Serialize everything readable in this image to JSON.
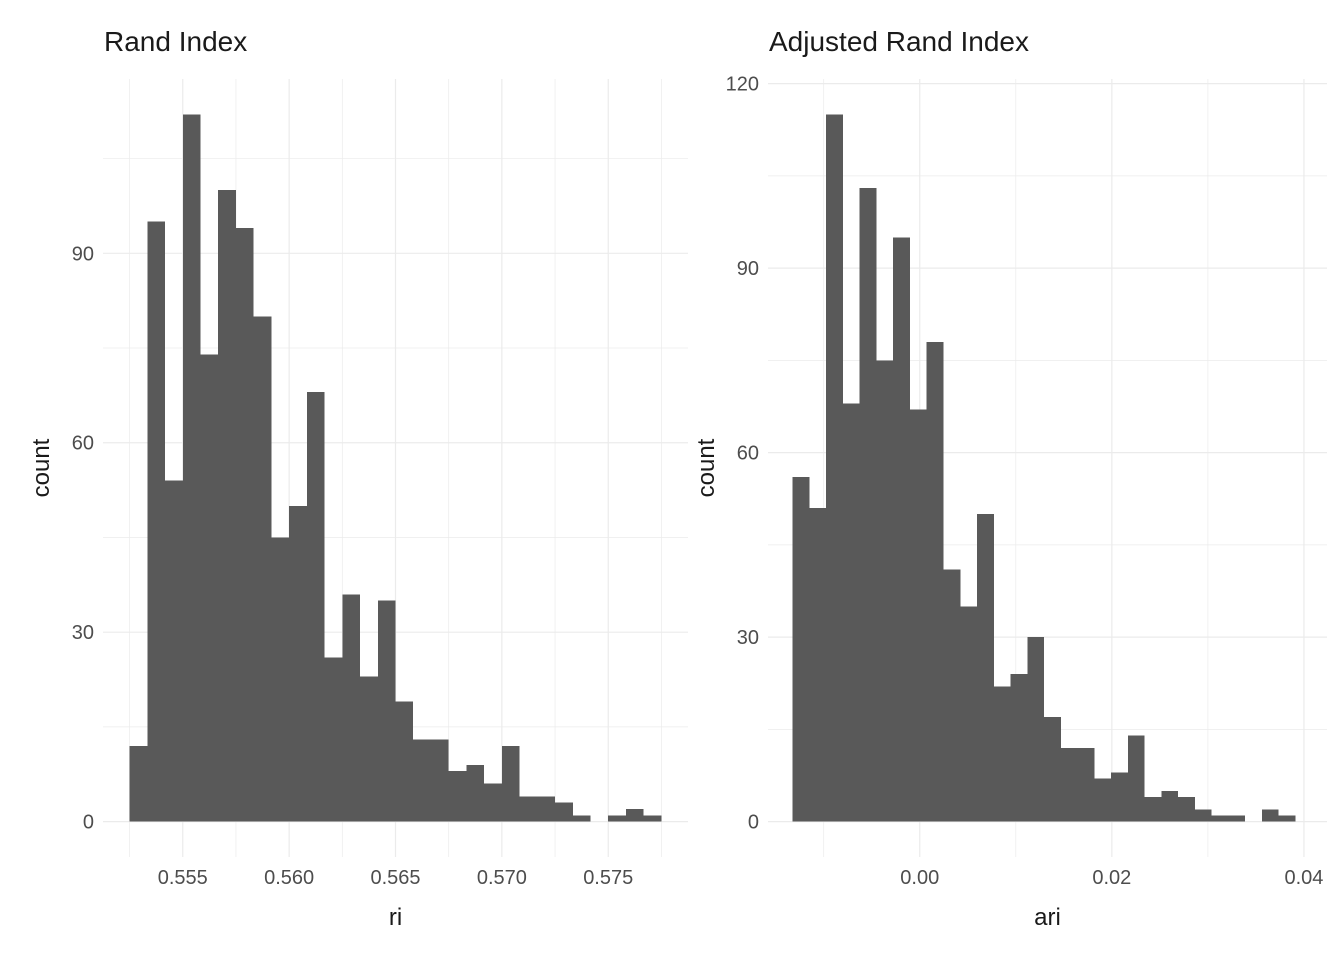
{
  "figure": {
    "background": "#ffffff",
    "bar_fill": "#595959",
    "grid_color": "#ebebeb",
    "tick_label_color": "#4d4d4d",
    "text_color": "#1a1a1a"
  },
  "chart_data": [
    {
      "type": "bar",
      "subtype": "histogram",
      "title": "Rand Index",
      "xlabel": "ri",
      "ylabel": "count",
      "bin_start": 0.5525,
      "bin_width": 0.0008333,
      "counts": [
        12,
        95,
        54,
        112,
        74,
        100,
        94,
        80,
        45,
        50,
        68,
        26,
        36,
        23,
        35,
        19,
        13,
        13,
        8,
        9,
        6,
        12,
        4,
        4,
        3,
        1,
        0,
        1,
        2,
        1
      ],
      "x_tick_values": [
        0.555,
        0.56,
        0.565,
        0.57,
        0.575
      ],
      "x_tick_labels": [
        "0.555",
        "0.560",
        "0.565",
        "0.570",
        "0.575"
      ],
      "x_minor_ticks": [
        0.5525,
        0.5575,
        0.5625,
        0.5675,
        0.5725,
        0.5775
      ],
      "y_tick_values": [
        0,
        30,
        60,
        90
      ],
      "y_tick_labels": [
        "0",
        "30",
        "60",
        "90"
      ],
      "y_minor_ticks": [
        15,
        45,
        75,
        105
      ],
      "xlim": [
        0.55125,
        0.57875
      ],
      "ylim": [
        -5.6,
        117.6
      ],
      "grid": true,
      "legend": false
    },
    {
      "type": "bar",
      "subtype": "histogram",
      "title": "Adjusted Rand Index",
      "xlabel": "ari",
      "ylabel": "count",
      "bin_start": -0.01323,
      "bin_width": 0.0017447,
      "counts": [
        56,
        51,
        115,
        68,
        103,
        75,
        95,
        67,
        78,
        41,
        35,
        50,
        22,
        24,
        30,
        17,
        12,
        12,
        7,
        8,
        14,
        4,
        5,
        4,
        2,
        1,
        1,
        0,
        2,
        1
      ],
      "x_tick_values": [
        0.0,
        0.02,
        0.04
      ],
      "x_tick_labels": [
        "0.00",
        "0.02",
        "0.04"
      ],
      "x_minor_ticks": [
        -0.01,
        0.01,
        0.03
      ],
      "y_tick_values": [
        0,
        30,
        60,
        90,
        120
      ],
      "y_tick_labels": [
        "0",
        "30",
        "60",
        "90",
        "120"
      ],
      "y_minor_ticks": [
        15,
        45,
        75,
        105
      ],
      "xlim": [
        -0.0158,
        0.0424
      ],
      "ylim": [
        -5.75,
        120.75
      ],
      "grid": true,
      "legend": false
    }
  ]
}
